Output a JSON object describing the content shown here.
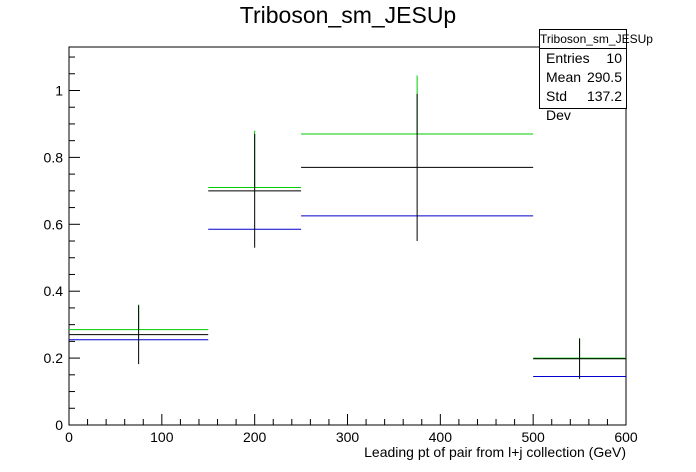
{
  "chart_data": {
    "type": "histogram",
    "title": "Triboson_sm_JESUp",
    "xlabel": "Leading pt of pair from l+j collection (GeV)",
    "ylabel": "",
    "xlim": [
      0,
      600
    ],
    "ylim": [
      0,
      1.13
    ],
    "x_ticks": [
      0,
      100,
      200,
      300,
      400,
      500,
      600
    ],
    "x_tick_labels": [
      "0",
      "100",
      "200",
      "300",
      "400",
      "500",
      "600"
    ],
    "y_ticks": [
      0,
      0.2,
      0.4,
      0.6,
      0.8,
      1
    ],
    "y_tick_labels": [
      "0",
      "0.2",
      "0.4",
      "0.6",
      "0.8",
      "1"
    ],
    "bins": [
      [
        0,
        150
      ],
      [
        150,
        250
      ],
      [
        250,
        500
      ],
      [
        500,
        600
      ]
    ],
    "series": [
      {
        "color": "#00cc00",
        "values": [
          0.285,
          0.71,
          0.87,
          0.2
        ]
      },
      {
        "color": "#000000",
        "values": [
          0.27,
          0.7,
          0.77,
          0.198
        ],
        "errors": [
          0.088,
          0.17,
          0.22,
          0.06
        ]
      },
      {
        "color": "#0000cc",
        "values": [
          0.255,
          0.585,
          0.625,
          0.145
        ]
      }
    ],
    "green_error_caps": [
      0.36,
      0.88,
      1.045,
      0.26
    ],
    "stats_box": {
      "title": "Triboson_sm_JESUp",
      "rows": [
        {
          "label": "Entries",
          "value": "10"
        },
        {
          "label": "Mean",
          "value": "290.5"
        },
        {
          "label": "Std Dev",
          "value": "137.2"
        }
      ]
    },
    "grid": false,
    "legend": "none"
  }
}
